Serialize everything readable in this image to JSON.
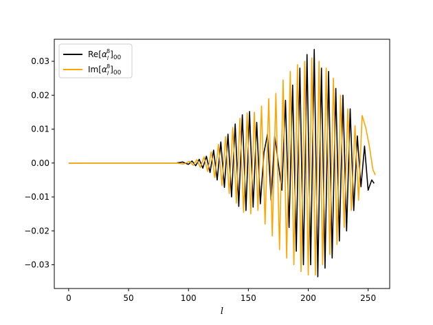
{
  "chart_data": {
    "type": "line",
    "title": "",
    "xlabel": "l",
    "ylabel": "",
    "xlim": [
      -12,
      268
    ],
    "ylim": [
      -0.037,
      0.0365
    ],
    "xticks": [
      0,
      50,
      100,
      150,
      200,
      250
    ],
    "xtick_labels": [
      "0",
      "50",
      "100",
      "150",
      "200",
      "250"
    ],
    "yticks": [
      -0.03,
      -0.02,
      -0.01,
      0.0,
      0.01,
      0.02,
      0.03
    ],
    "ytick_labels": [
      "−0.03",
      "−0.02",
      "−0.01",
      "0.00",
      "0.01",
      "0.02",
      "0.03"
    ],
    "grid": false,
    "legend": "top-left",
    "series": [
      {
        "name": "Re[αₗ⁸]₀₀",
        "legend_main": "Re",
        "legend_sym": "α",
        "legend_sub": "l",
        "legend_sup": "8",
        "legend_tail": "00",
        "color": "#000000",
        "x": [
          0,
          10,
          20,
          30,
          40,
          50,
          60,
          70,
          80,
          90,
          95,
          100,
          103,
          106,
          109,
          112,
          115,
          118,
          121,
          124,
          127,
          130,
          133,
          136,
          139,
          142,
          145,
          148,
          151,
          154,
          157,
          160,
          163,
          166,
          169,
          172,
          175,
          178,
          181,
          184,
          187,
          190,
          193,
          196,
          199,
          202,
          205,
          208,
          211,
          214,
          217,
          220,
          223,
          226,
          229,
          232,
          235,
          238,
          241,
          244,
          247,
          250,
          253,
          255
        ],
        "y": [
          0,
          0,
          0,
          0,
          0,
          0,
          0,
          0,
          0,
          0,
          0.0003,
          -0.0004,
          0.0006,
          -0.0008,
          0.0011,
          -0.0015,
          0.002,
          -0.0028,
          0.0038,
          -0.005,
          0.0062,
          -0.0072,
          0.0085,
          -0.01,
          0.0115,
          -0.0128,
          0.0142,
          -0.014,
          0.0152,
          -0.013,
          0.012,
          -0.012,
          0.003,
          0.0085,
          -0.011,
          0.008,
          0.0,
          -0.008,
          0.0185,
          -0.019,
          0.023,
          -0.026,
          0.028,
          -0.03,
          0.032,
          -0.03,
          0.0335,
          -0.0335,
          0.028,
          -0.031,
          0.027,
          -0.028,
          0.022,
          -0.023,
          0.02,
          -0.02,
          0.016,
          -0.014,
          0.008,
          -0.007,
          0.005,
          -0.008,
          -0.005,
          -0.006
        ]
      },
      {
        "name": "Im[αₗ⁸]₀₀",
        "legend_main": "Im",
        "legend_sym": "α",
        "legend_sub": "l",
        "legend_sup": "8",
        "legend_tail": "00",
        "color": "#ffa500",
        "x": [
          0,
          10,
          20,
          30,
          40,
          50,
          60,
          70,
          80,
          90,
          96,
          101,
          104,
          107,
          110,
          113,
          116,
          119,
          122,
          125,
          128,
          131,
          134,
          137,
          140,
          143,
          146,
          149,
          152,
          155,
          158,
          161,
          164,
          167,
          170,
          173,
          176,
          179,
          182,
          185,
          188,
          191,
          194,
          197,
          200,
          203,
          206,
          209,
          212,
          215,
          218,
          221,
          224,
          227,
          230,
          233,
          236,
          239,
          242,
          245,
          248,
          251,
          254,
          256
        ],
        "y": [
          0,
          0,
          0,
          0,
          0,
          0,
          0,
          0,
          0,
          0,
          -0.0003,
          0.0005,
          -0.0007,
          0.001,
          -0.0013,
          0.0018,
          -0.0025,
          0.0033,
          -0.0043,
          0.0055,
          -0.0066,
          0.0078,
          -0.009,
          0.0105,
          -0.0118,
          0.0132,
          -0.0145,
          0.0148,
          -0.015,
          0.015,
          -0.014,
          0.0168,
          -0.018,
          0.019,
          -0.0215,
          0.0205,
          -0.0255,
          0.0245,
          -0.028,
          0.027,
          -0.03,
          0.029,
          -0.032,
          0.03,
          -0.033,
          0.031,
          -0.033,
          0.03,
          -0.03,
          0.028,
          -0.027,
          0.025,
          -0.024,
          0.02,
          -0.019,
          0.016,
          -0.014,
          0.011,
          -0.011,
          0.014,
          0.0105,
          0.005,
          -0.002,
          -0.0035
        ]
      }
    ]
  }
}
